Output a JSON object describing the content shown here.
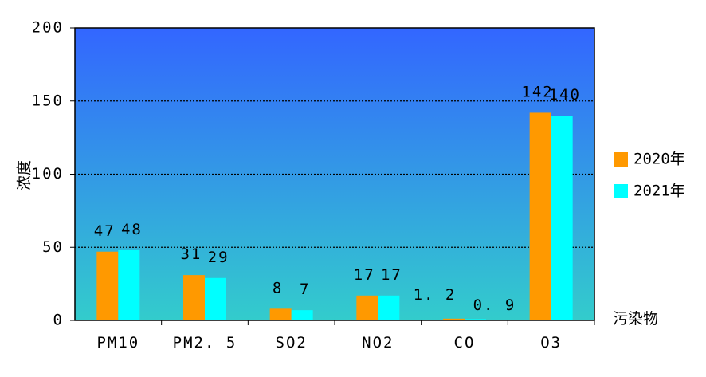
{
  "chart_data": {
    "type": "bar",
    "categories": [
      "PM10",
      "PM2.5",
      "SO2",
      "NO2",
      "CO",
      "O3"
    ],
    "category_display": [
      "PM10",
      "PM2. 5",
      "SO2",
      "NO2",
      "CO",
      "O3"
    ],
    "series": [
      {
        "name": "2020年",
        "values": [
          47,
          31,
          8,
          17,
          1.2,
          142
        ],
        "labels": [
          "47",
          "31",
          "8",
          "17",
          "1. 2",
          "142"
        ],
        "color": "#ff9900"
      },
      {
        "name": "2021年",
        "values": [
          48,
          29,
          7,
          17,
          0.9,
          140
        ],
        "labels": [
          "48",
          "29",
          "7",
          "17",
          "0. 9",
          "140"
        ],
        "color": "#00ffff"
      }
    ],
    "xlabel": "污染物",
    "ylabel": "浓度",
    "ylim": [
      0,
      200
    ],
    "yticks": [
      0,
      50,
      100,
      150,
      200
    ],
    "grid": true,
    "legend_position": "right",
    "plot_gradient": {
      "top": "#3366ff",
      "bottom": "#33cccc"
    }
  }
}
